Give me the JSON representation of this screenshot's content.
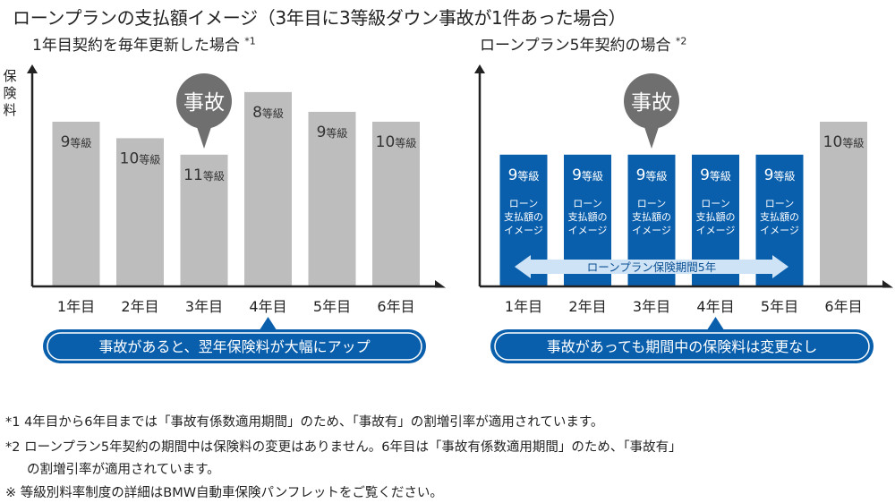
{
  "title": "ローンプランの支払額イメージ（3年目に3等級ダウン事故が1件あった場合）",
  "y_axis_label": "保険料",
  "grade_unit": "等級",
  "accident_label": "事故",
  "footnotes": [
    "*1  4年目から6年目までは「事故有係数適用期間」のため、「事故有」の割増引率が適用されています。",
    "*2  ローンプラン5年契約の期間中は保険料の変更はありません。6年目は「事故有係数適用期間」のため、「事故有」",
    "の割増引率が適用されています。",
    "※  等級別料率制度の詳細はBMW自動車保険パンフレットをご覧ください。"
  ],
  "colors": {
    "gray_bar": "#bdbdbd",
    "blue_bar": "#0a5fac",
    "callout": "#6f6f6f",
    "axis": "#222222"
  },
  "chart_data": [
    {
      "type": "bar",
      "subtitle": "1年目契約を毎年更新した場合",
      "note_mark": "*1",
      "categories": [
        "1年目",
        "2年目",
        "3年目",
        "4年目",
        "5年目",
        "6年目"
      ],
      "values": [
        100,
        90,
        80,
        118,
        106,
        100
      ],
      "grades": [
        "9",
        "10",
        "11",
        "8",
        "9",
        "10"
      ],
      "accident_year": "3年目",
      "pointer_year": "4年目",
      "banner": "事故があると、翌年保険料が大幅にアップ"
    },
    {
      "type": "bar",
      "subtitle": "ローンプラン5年契約の場合",
      "note_mark": "*2",
      "categories": [
        "1年目",
        "2年目",
        "3年目",
        "4年目",
        "5年目",
        "6年目"
      ],
      "values": [
        80,
        80,
        80,
        80,
        80,
        100
      ],
      "grades": [
        "9",
        "9",
        "9",
        "9",
        "9",
        "10"
      ],
      "loan_bar_text": [
        "ローン",
        "支払額の",
        "イメージ"
      ],
      "period_label": "ローンプラン保険期間5年",
      "accident_year": "3年目",
      "pointer_year": "4年目",
      "banner": "事故があっても期間中の保険料は変更なし"
    }
  ]
}
